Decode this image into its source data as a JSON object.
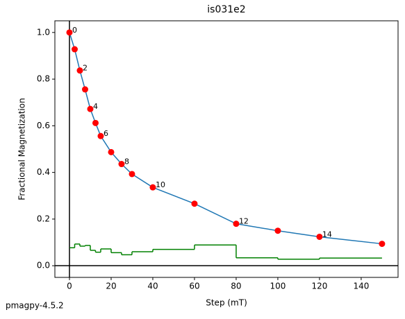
{
  "chart_data": {
    "type": "line",
    "title": "is031e2",
    "xlabel": "Step (mT)",
    "ylabel": "Fractional Magnetization",
    "x": [
      0,
      2.5,
      5,
      7.5,
      10,
      12.5,
      15,
      20,
      25,
      30,
      40,
      60,
      80,
      100,
      120,
      150
    ],
    "series": [
      {
        "color": "#1f77b4",
        "marker_color": "#ff0000",
        "values": [
          1.0,
          0.928,
          0.837,
          0.756,
          0.672,
          0.612,
          0.556,
          0.487,
          0.436,
          0.393,
          0.336,
          0.266,
          0.18,
          0.15,
          0.124,
          0.094
        ],
        "point_labels": [
          "0",
          null,
          "2",
          null,
          "4",
          null,
          "6",
          null,
          "8",
          null,
          "10",
          null,
          "12",
          null,
          "14",
          null
        ]
      }
    ],
    "steps": {
      "color": "#008000",
      "bins": [
        0,
        2.5,
        5,
        7.5,
        10,
        12.5,
        15,
        20,
        25,
        30,
        40,
        60,
        80,
        100,
        120,
        150
      ],
      "values": [
        0.077,
        0.093,
        0.084,
        0.087,
        0.066,
        0.058,
        0.072,
        0.056,
        0.047,
        0.06,
        0.07,
        0.089,
        0.034,
        0.028,
        0.033
      ]
    },
    "xlim": [
      -7,
      157.7
    ],
    "ylim": [
      -0.05,
      1.05
    ],
    "xticks": [
      0,
      20,
      40,
      60,
      80,
      100,
      120,
      140
    ],
    "yticks": [
      {
        "value": 0,
        "label": "0.0"
      },
      {
        "value": 0.2,
        "label": "0.2"
      },
      {
        "value": 0.4,
        "label": "0.4"
      },
      {
        "value": 0.6,
        "label": "0.6"
      },
      {
        "value": 0.8,
        "label": "0.8"
      },
      {
        "value": 1.0,
        "label": "1.0"
      }
    ],
    "footer": "pmagpy-4.5.2"
  }
}
